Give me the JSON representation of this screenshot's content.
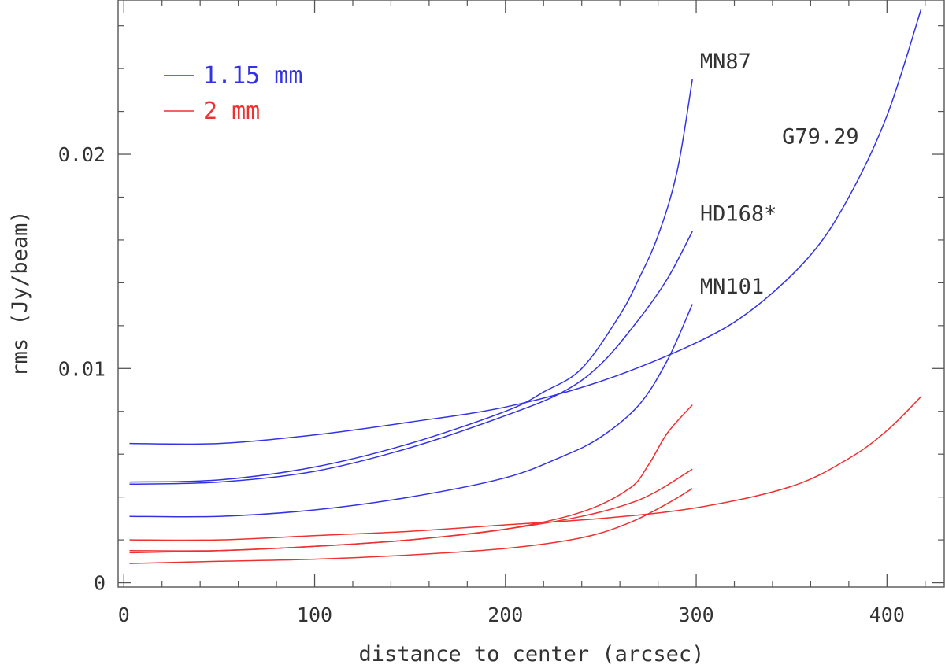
{
  "chart_data": {
    "type": "line",
    "title": "",
    "xlabel": "distance to center (arcsec)",
    "ylabel": "rms (Jy/beam)",
    "xlim": [
      -3,
      430
    ],
    "ylim": [
      -0.0002,
      0.0272
    ],
    "xticks_major": [
      0,
      100,
      200,
      300,
      400
    ],
    "xtick_labels": [
      "0",
      "100",
      "200",
      "300",
      "400"
    ],
    "xticks_minor_step": 20,
    "yticks_major": [
      0,
      0.01,
      0.02
    ],
    "ytick_labels": [
      "0",
      "0.01",
      "0.02"
    ],
    "yticks_minor_step": 0.002,
    "legend": [
      {
        "label": "1.15 mm",
        "color": "#3333e6"
      },
      {
        "label": "2 mm",
        "color": "#ee3030"
      }
    ],
    "legend_position": "top-left",
    "annotations": [
      {
        "text": "MN87",
        "at": [
          302,
          0.024
        ]
      },
      {
        "text": "HD168*",
        "at": [
          302,
          0.0169
        ]
      },
      {
        "text": "MN101",
        "at": [
          302,
          0.0135
        ]
      },
      {
        "text": "G79.29",
        "at": [
          345,
          0.0205
        ]
      }
    ],
    "series": [
      {
        "name": "MN87 (1.15 mm)",
        "color": "#3333e6",
        "x": [
          3,
          50,
          100,
          150,
          200,
          220,
          240,
          260,
          270,
          280,
          290,
          298
        ],
        "y": [
          0.0047,
          0.0048,
          0.0054,
          0.0065,
          0.008,
          0.0089,
          0.01,
          0.0125,
          0.0142,
          0.0162,
          0.0192,
          0.0235
        ]
      },
      {
        "name": "HD168* (1.15 mm)",
        "color": "#3333e6",
        "x": [
          3,
          50,
          100,
          150,
          200,
          230,
          250,
          270,
          285,
          298
        ],
        "y": [
          0.0046,
          0.0047,
          0.0052,
          0.0063,
          0.0078,
          0.0089,
          0.0102,
          0.0123,
          0.0142,
          0.0164
        ]
      },
      {
        "name": "MN101 (1.15 mm)",
        "color": "#3333e6",
        "x": [
          3,
          50,
          100,
          150,
          200,
          230,
          250,
          270,
          285,
          298
        ],
        "y": [
          0.0031,
          0.0031,
          0.0034,
          0.004,
          0.0049,
          0.0059,
          0.0068,
          0.0083,
          0.0104,
          0.013
        ]
      },
      {
        "name": "G79.29 (1.15 mm)",
        "color": "#3333e6",
        "x": [
          3,
          50,
          100,
          150,
          200,
          250,
          300,
          330,
          360,
          380,
          400,
          418
        ],
        "y": [
          0.0065,
          0.0065,
          0.0069,
          0.0075,
          0.0082,
          0.0094,
          0.0112,
          0.0128,
          0.0153,
          0.018,
          0.0218,
          0.0268
        ]
      },
      {
        "name": "MN87 (2 mm)",
        "color": "#ee3030",
        "x": [
          3,
          50,
          100,
          150,
          200,
          240,
          265,
          275,
          285,
          298
        ],
        "y": [
          0.0015,
          0.0015,
          0.0017,
          0.002,
          0.0025,
          0.0033,
          0.0044,
          0.0055,
          0.007,
          0.0083
        ]
      },
      {
        "name": "HD168* (2 mm)",
        "color": "#ee3030",
        "x": [
          3,
          50,
          100,
          150,
          200,
          240,
          265,
          280,
          298
        ],
        "y": [
          0.0014,
          0.0015,
          0.0017,
          0.002,
          0.0025,
          0.0031,
          0.0037,
          0.0043,
          0.0053
        ]
      },
      {
        "name": "MN101 (2 mm)",
        "color": "#ee3030",
        "x": [
          3,
          50,
          100,
          150,
          200,
          240,
          265,
          285,
          298
        ],
        "y": [
          0.0009,
          0.001,
          0.0011,
          0.0013,
          0.0016,
          0.0021,
          0.0028,
          0.0037,
          0.0044
        ]
      },
      {
        "name": "G79.29 (2 mm)",
        "color": "#ee3030",
        "x": [
          3,
          50,
          100,
          150,
          200,
          250,
          300,
          350,
          380,
          400,
          418
        ],
        "y": [
          0.002,
          0.002,
          0.0022,
          0.0024,
          0.0027,
          0.003,
          0.0035,
          0.0045,
          0.0058,
          0.0071,
          0.0087
        ]
      }
    ]
  }
}
